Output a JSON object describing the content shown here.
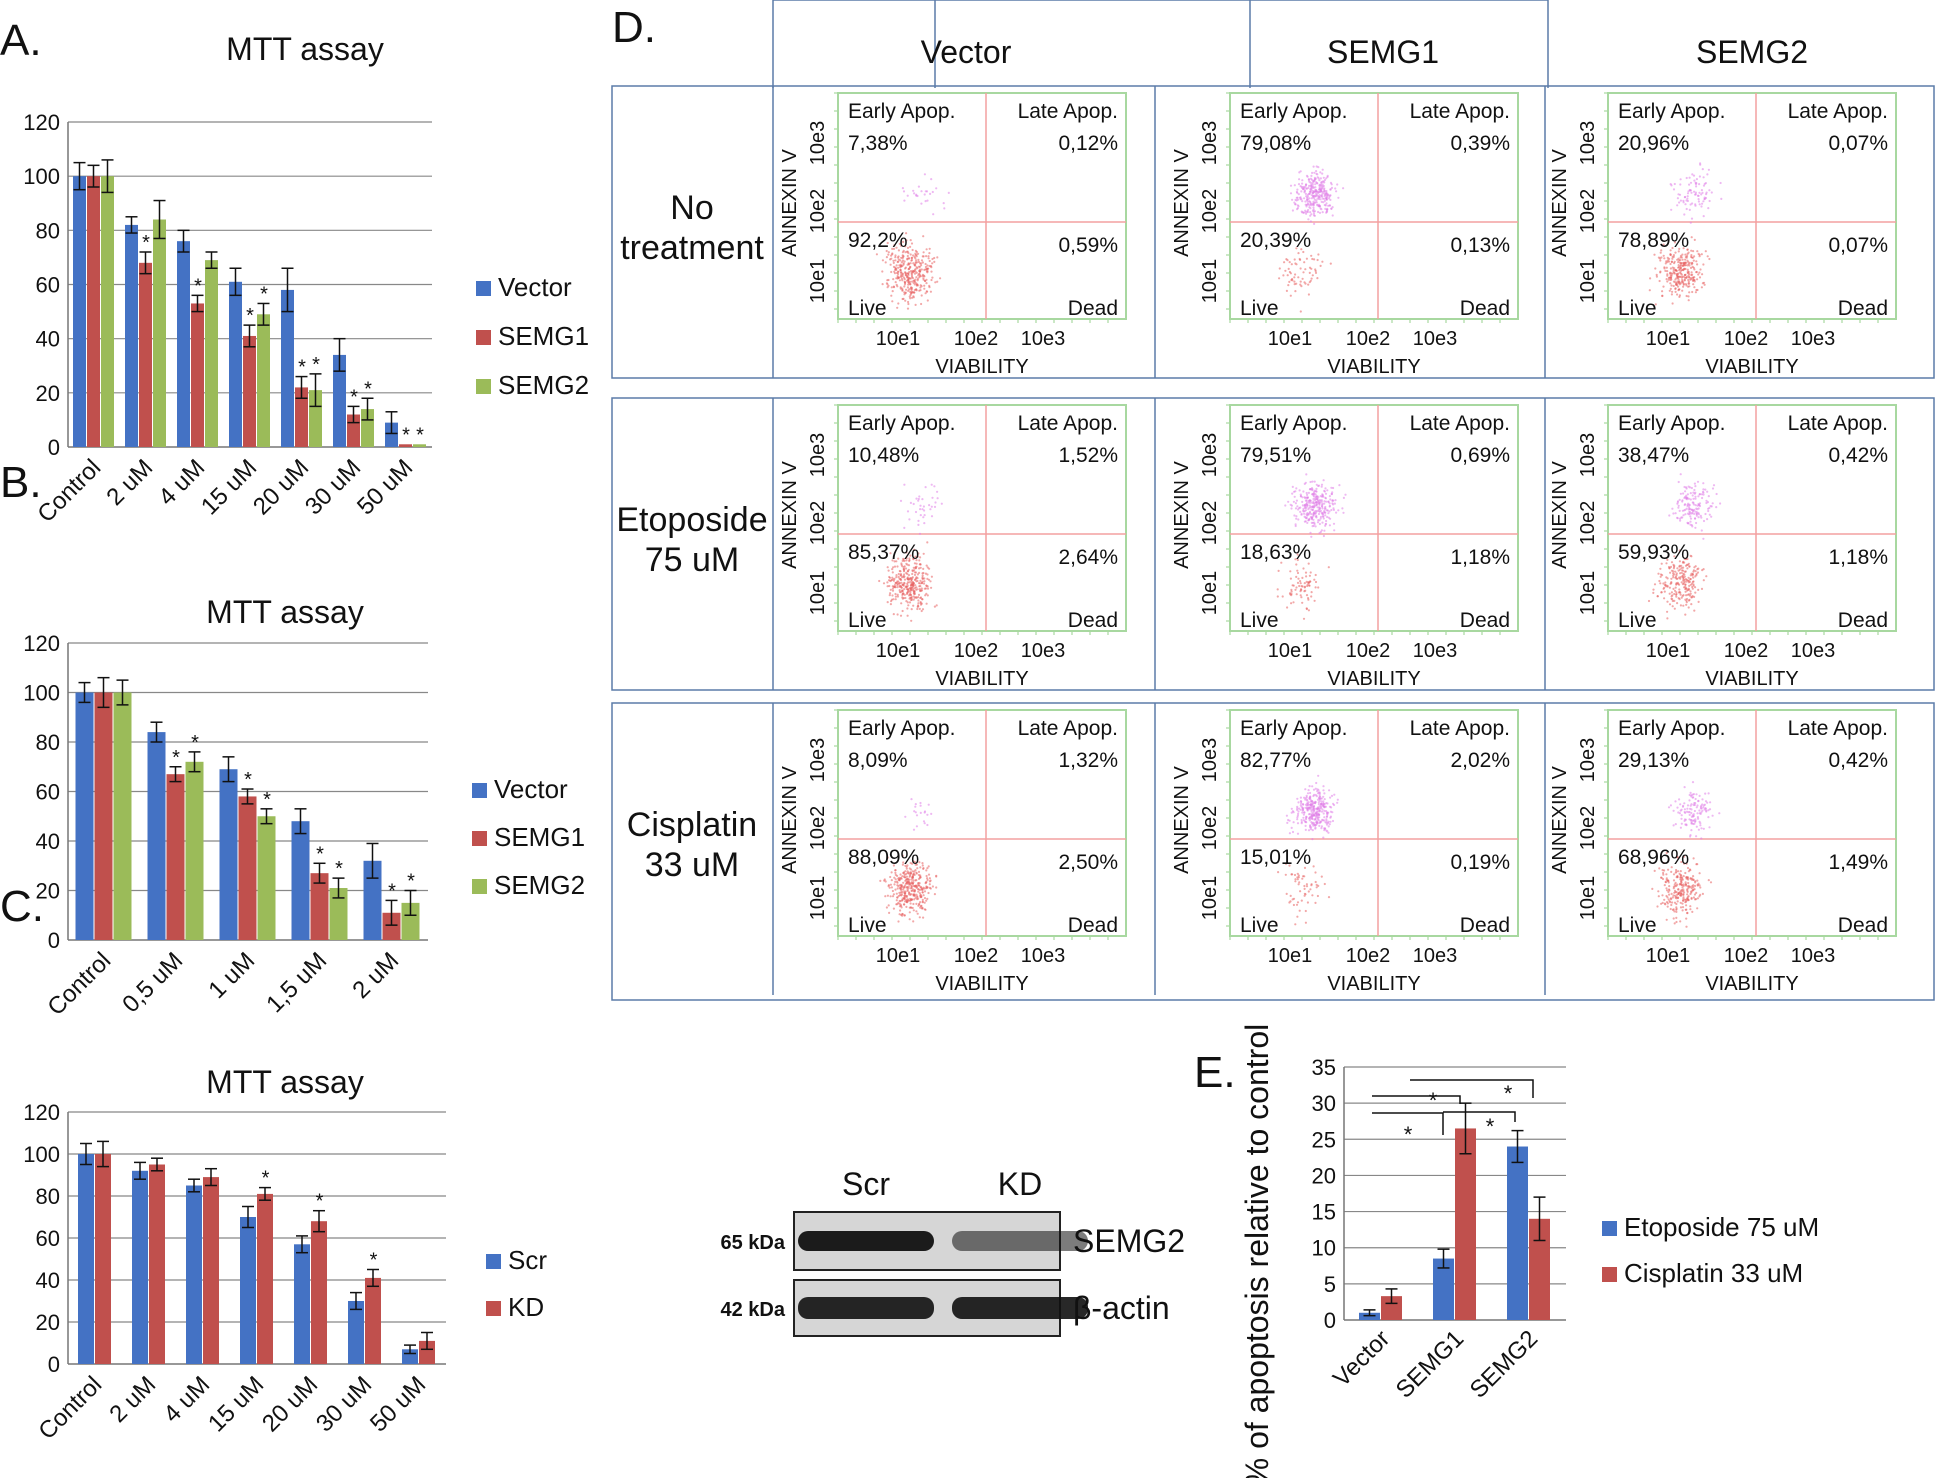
{
  "panels": {
    "A": "A.",
    "B": "B.",
    "C": "C.",
    "D": "D.",
    "E": "E."
  },
  "colors": {
    "Vector": "#4472C4",
    "SEMG1": "#C0504D",
    "SEMG2": "#9BBB59",
    "Scr": "#4472C4",
    "KD": "#C0504D",
    "Etoposide 75 uM": "#4472C4",
    "Cisplatin 33 uM": "#C0504D",
    "gate": "#F4A0A0",
    "frame": "#A8D8A0",
    "grid_border": "#5B7BA8"
  },
  "chart_data": [
    {
      "id": "A",
      "type": "bar",
      "title": "MTT assay",
      "categories": [
        "Control",
        "2 uM",
        "4 uM",
        "15 uM",
        "20 uM",
        "30 uM",
        "50 uM"
      ],
      "ylim": [
        0,
        120
      ],
      "yticks": [
        "0",
        "20",
        "40",
        "60",
        "80",
        "100",
        "120"
      ],
      "series": [
        {
          "name": "Vector",
          "values": [
            100,
            82,
            76,
            61,
            58,
            34,
            9
          ],
          "errors": [
            5,
            3,
            4,
            5,
            8,
            6,
            4
          ],
          "stars": [
            "",
            "",
            "",
            "",
            "",
            "",
            ""
          ]
        },
        {
          "name": "SEMG1",
          "values": [
            100,
            68,
            53,
            41,
            22,
            12,
            1
          ],
          "errors": [
            4,
            4,
            3,
            4,
            4,
            3,
            0
          ],
          "stars": [
            "",
            "*",
            "*",
            "*",
            "*",
            "*",
            "*"
          ]
        },
        {
          "name": "SEMG2",
          "values": [
            100,
            84,
            69,
            49,
            21,
            14,
            1
          ],
          "errors": [
            6,
            7,
            3,
            4,
            6,
            4,
            0
          ],
          "stars": [
            "",
            "",
            "",
            "*",
            "*",
            "*",
            "*"
          ]
        }
      ],
      "legend": [
        "Vector",
        "SEMG1",
        "SEMG2"
      ]
    },
    {
      "id": "B",
      "type": "bar",
      "title": "MTT assay",
      "categories": [
        "Control",
        "0,5 uM",
        "1 uM",
        "1,5 uM",
        "2 uM"
      ],
      "ylim": [
        0,
        120
      ],
      "yticks": [
        "0",
        "20",
        "40",
        "60",
        "80",
        "100",
        "120"
      ],
      "series": [
        {
          "name": "Vector",
          "values": [
            100,
            84,
            69,
            48,
            32
          ],
          "errors": [
            4,
            4,
            5,
            5,
            7
          ],
          "stars": [
            "",
            "",
            "",
            "",
            ""
          ]
        },
        {
          "name": "SEMG1",
          "values": [
            100,
            67,
            58,
            27,
            11
          ],
          "errors": [
            6,
            3,
            3,
            4,
            5
          ],
          "stars": [
            "",
            "*",
            "*",
            "*",
            "*"
          ]
        },
        {
          "name": "SEMG2",
          "values": [
            100,
            72,
            50,
            21,
            15
          ],
          "errors": [
            5,
            4,
            3,
            4,
            5
          ],
          "stars": [
            "",
            "*",
            "*",
            "*",
            "*"
          ]
        }
      ],
      "legend": [
        "Vector",
        "SEMG1",
        "SEMG2"
      ]
    },
    {
      "id": "C",
      "type": "bar",
      "title": "MTT assay",
      "categories": [
        "Control",
        "2 uM",
        "4 uM",
        "15 uM",
        "20 uM",
        "30 uM",
        "50 uM"
      ],
      "ylim": [
        0,
        120
      ],
      "yticks": [
        "0",
        "20",
        "40",
        "60",
        "80",
        "100",
        "120"
      ],
      "series": [
        {
          "name": "Scr",
          "values": [
            100,
            92,
            85,
            70,
            57,
            30,
            7
          ],
          "errors": [
            5,
            4,
            3,
            5,
            4,
            4,
            2
          ],
          "stars": [
            "",
            "",
            "",
            "",
            "",
            "",
            ""
          ]
        },
        {
          "name": "KD",
          "values": [
            100,
            95,
            89,
            81,
            68,
            41,
            11
          ],
          "errors": [
            6,
            3,
            4,
            3,
            5,
            4,
            4
          ],
          "stars": [
            "",
            "",
            "",
            "*",
            "*",
            "*",
            ""
          ]
        }
      ],
      "legend": [
        "Scr",
        "KD"
      ]
    },
    {
      "id": "E",
      "type": "bar",
      "categories": [
        "Vector",
        "SEMG1",
        "SEMG2"
      ],
      "ylabel": "% of apoptosis relative to control",
      "ylim": [
        0,
        35
      ],
      "yticks": [
        "0",
        "5",
        "10",
        "15",
        "20",
        "25",
        "30",
        "35"
      ],
      "series": [
        {
          "name": "Etoposide 75 uM",
          "values": [
            1,
            8.5,
            24
          ],
          "errors": [
            0.4,
            1.3,
            2.2
          ]
        },
        {
          "name": "Cisplatin 33 uM",
          "values": [
            3.3,
            26.5,
            14
          ],
          "errors": [
            1.0,
            3.5,
            3.0
          ]
        }
      ],
      "legend": [
        "Etoposide 75 uM",
        "Cisplatin 33 uM"
      ],
      "significance": [
        "*",
        "*",
        "*",
        "*"
      ]
    }
  ],
  "facs": {
    "columns": [
      "Vector",
      "SEMG1",
      "SEMG2"
    ],
    "rows": [
      "No\ntreatment",
      "Etoposide\n75 uM",
      "Cisplatin\n33 uM"
    ],
    "labels": {
      "ea": "Early Apop.",
      "la": "Late Apop.",
      "live": "Live",
      "dead": "Dead",
      "xaxis": "VIABILITY",
      "yaxis": "ANNEXIN V",
      "xticks": [
        "10e1",
        "10e2",
        "10e3"
      ],
      "yticks": [
        "10e1",
        "10e2",
        "10e3"
      ]
    },
    "plots": [
      [
        {
          "ea": "7,38%",
          "la": "0,12%",
          "live": "92,2%",
          "dead": "0,59%",
          "apop": 0.07
        },
        {
          "ea": "79,08%",
          "la": "0,39%",
          "live": "20,39%",
          "dead": "0,13%",
          "apop": 0.79
        },
        {
          "ea": "20,96%",
          "la": "0,07%",
          "live": "78,89%",
          "dead": "0,07%",
          "apop": 0.21
        }
      ],
      [
        {
          "ea": "10,48%",
          "la": "1,52%",
          "live": "85,37%",
          "dead": "2,64%",
          "apop": 0.1
        },
        {
          "ea": "79,51%",
          "la": "0,69%",
          "live": "18,63%",
          "dead": "1,18%",
          "apop": 0.8
        },
        {
          "ea": "38,47%",
          "la": "0,42%",
          "live": "59,93%",
          "dead": "1,18%",
          "apop": 0.38
        }
      ],
      [
        {
          "ea": "8,09%",
          "la": "1,32%",
          "live": "88,09%",
          "dead": "2,50%",
          "apop": 0.08
        },
        {
          "ea": "82,77%",
          "la": "2,02%",
          "live": "15,01%",
          "dead": "0,19%",
          "apop": 0.83
        },
        {
          "ea": "29,13%",
          "la": "0,42%",
          "live": "68,96%",
          "dead": "1,49%",
          "apop": 0.29
        }
      ]
    ]
  },
  "blot": {
    "lanes": [
      "Scr",
      "KD"
    ],
    "rows": [
      {
        "kda": "65 kDa",
        "protein": "SEMG2"
      },
      {
        "kda": "42 kDa",
        "protein": "β-actin"
      }
    ]
  }
}
